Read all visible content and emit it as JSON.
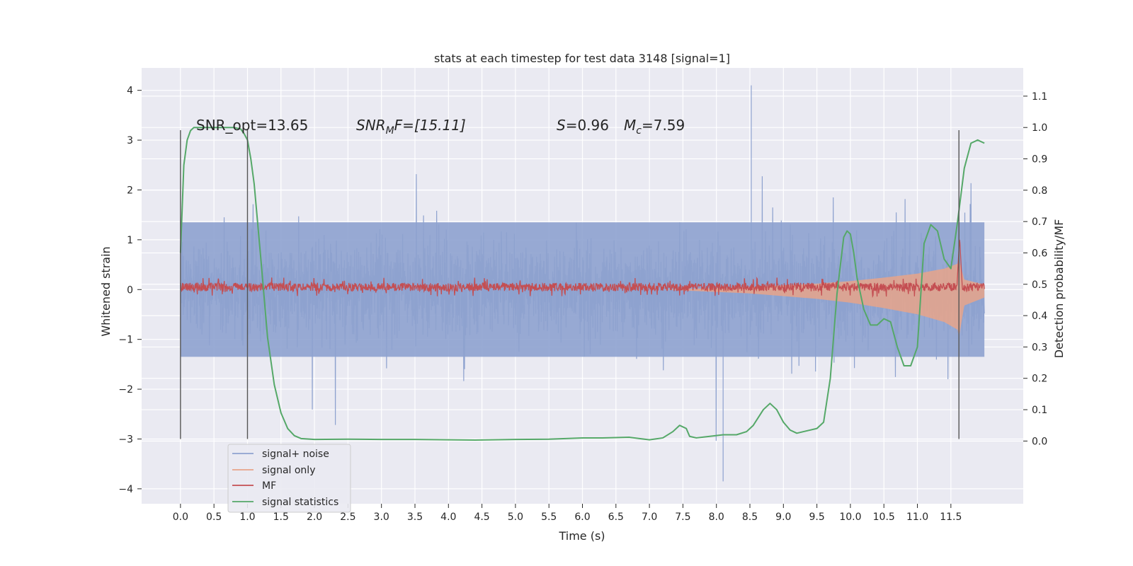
{
  "chart_data": {
    "type": "line",
    "title": "stats at each timestep for test data 3148 [signal=1]",
    "xlabel": "Time (s)",
    "ylabel_left": "Whitened strain",
    "ylabel_right": "Detection probability/MF",
    "xlim": [
      -0.58,
      12.58
    ],
    "ylim_left": [
      -4.3,
      4.45
    ],
    "ylim_right": [
      -0.2,
      1.19
    ],
    "x_ticks": [
      "0.0",
      "0.5",
      "1.0",
      "1.5",
      "2.0",
      "2.5",
      "3.0",
      "3.5",
      "4.0",
      "4.5",
      "5.0",
      "5.5",
      "6.0",
      "6.5",
      "7.0",
      "7.5",
      "8.0",
      "8.5",
      "9.0",
      "9.5",
      "10.0",
      "10.5",
      "11.0",
      "11.5"
    ],
    "y_ticks_left": [
      "4",
      "3",
      "2",
      "1",
      "0",
      "−1",
      "−2",
      "−3",
      "−4"
    ],
    "y_ticks_right": [
      "1.1",
      "1.0",
      "0.9",
      "0.8",
      "0.7",
      "0.6",
      "0.5",
      "0.4",
      "0.3",
      "0.2",
      "0.1",
      "0.0"
    ],
    "grid": true,
    "legend_position": "lower-left",
    "annotations": {
      "snr_opt": "SNR_opt=13.65",
      "snr_mf_italic": "SNR",
      "snr_mf_sub": "M",
      "snr_mf_rest": "F=[15.11]",
      "s_label": "S",
      "s_value": "=0.96",
      "mc_label": "M",
      "mc_sub": "c",
      "mc_value": "=7.59"
    },
    "vlines": [
      {
        "x": 0.0,
        "y_range": [
          -3.0,
          3.2
        ]
      },
      {
        "x": 1.0,
        "y_range": [
          -3.0,
          3.2
        ]
      },
      {
        "x": 11.62,
        "y_range": [
          -3.0,
          3.2
        ]
      }
    ],
    "series": [
      {
        "name": "signal+ noise",
        "color": "#8ea2cf",
        "axis": "left",
        "style": "noise",
        "x_range": [
          0.0,
          12.0
        ],
        "typical_amplitude": 1.35,
        "max_peak": 4.1,
        "min_peak": -3.85
      },
      {
        "name": "signal only",
        "color": "#e8a48a",
        "axis": "left",
        "style": "chirp",
        "x_range": [
          7.2,
          12.0
        ],
        "envelope": [
          [
            7.2,
            0.0
          ],
          [
            8.5,
            0.05
          ],
          [
            9.5,
            0.12
          ],
          [
            10.0,
            0.17
          ],
          [
            10.5,
            0.24
          ],
          [
            11.0,
            0.32
          ],
          [
            11.4,
            0.42
          ],
          [
            11.6,
            0.52
          ],
          [
            11.62,
            0.6
          ],
          [
            11.7,
            0.2
          ],
          [
            12.0,
            0.1
          ]
        ]
      },
      {
        "name": "MF",
        "color": "#c44e52",
        "axis": "left",
        "style": "mf",
        "x_range": [
          0.0,
          12.0
        ],
        "baseline": 0.05,
        "amplitude": 0.12,
        "peak": {
          "x": 11.63,
          "y": 1.0
        }
      },
      {
        "name": "signal statistics",
        "color": "#55a868",
        "axis": "right",
        "style": "line",
        "x": [
          0.0,
          0.05,
          0.1,
          0.15,
          0.2,
          0.3,
          0.5,
          0.7,
          0.8,
          0.9,
          0.95,
          1.0,
          1.05,
          1.1,
          1.15,
          1.2,
          1.3,
          1.4,
          1.5,
          1.6,
          1.7,
          1.8,
          2.0,
          2.5,
          3.0,
          3.5,
          4.0,
          4.4,
          5.0,
          5.5,
          6.0,
          6.3,
          6.7,
          7.0,
          7.2,
          7.35,
          7.45,
          7.55,
          7.6,
          7.7,
          7.9,
          8.1,
          8.3,
          8.45,
          8.55,
          8.7,
          8.8,
          8.9,
          9.0,
          9.1,
          9.2,
          9.3,
          9.5,
          9.6,
          9.7,
          9.8,
          9.9,
          9.95,
          10.0,
          10.05,
          10.1,
          10.2,
          10.3,
          10.4,
          10.5,
          10.6,
          10.7,
          10.8,
          10.9,
          11.0,
          11.1,
          11.2,
          11.3,
          11.4,
          11.5,
          11.6,
          11.7,
          11.8,
          11.9,
          12.0
        ],
        "y": [
          0.6,
          0.88,
          0.96,
          0.99,
          1.0,
          1.0,
          1.0,
          1.0,
          1.0,
          0.995,
          0.98,
          0.96,
          0.9,
          0.82,
          0.7,
          0.58,
          0.33,
          0.18,
          0.09,
          0.04,
          0.017,
          0.008,
          0.005,
          0.006,
          0.005,
          0.005,
          0.004,
          0.003,
          0.005,
          0.006,
          0.01,
          0.01,
          0.012,
          0.004,
          0.01,
          0.03,
          0.05,
          0.04,
          0.015,
          0.01,
          0.015,
          0.02,
          0.02,
          0.03,
          0.05,
          0.1,
          0.12,
          0.1,
          0.06,
          0.035,
          0.025,
          0.03,
          0.04,
          0.06,
          0.2,
          0.47,
          0.65,
          0.67,
          0.66,
          0.6,
          0.52,
          0.42,
          0.37,
          0.37,
          0.39,
          0.38,
          0.3,
          0.24,
          0.24,
          0.3,
          0.63,
          0.69,
          0.67,
          0.58,
          0.55,
          0.7,
          0.87,
          0.95,
          0.96,
          0.95
        ]
      }
    ]
  }
}
